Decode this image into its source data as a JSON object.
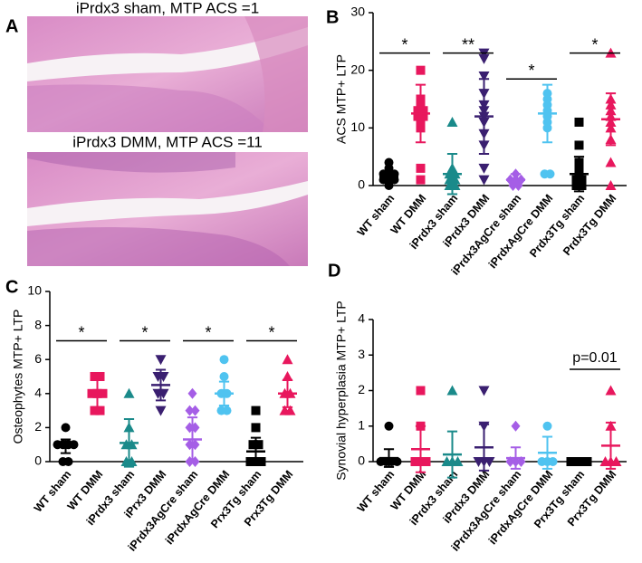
{
  "histology": {
    "panel_label": "A",
    "captions": [
      "iPrdx3 sham, MTP ACS =1",
      "iPrdx3 DMM, MTP ACS =11"
    ]
  },
  "chart_data": [
    {
      "type": "dotplot",
      "panel_label": "B",
      "ylabel": "ACS MTP+ LTP",
      "ylim": [
        0,
        30
      ],
      "yticks": [
        0,
        10,
        20,
        30
      ],
      "groups": [
        {
          "name": "WT sham",
          "color": "#000000",
          "marker": "circle",
          "points": [
            0,
            1,
            1,
            1,
            2,
            2,
            2,
            3,
            4
          ],
          "mean": 1.5,
          "sd": 1
        },
        {
          "name": "WT DMM",
          "color": "#e8175d",
          "marker": "square",
          "points": [
            1,
            3,
            10,
            11,
            12,
            12,
            13,
            13,
            14,
            15,
            20
          ],
          "mean": 12.5,
          "sd": 5
        },
        {
          "name": "iPrdx3 sham",
          "color": "#1a8a8a",
          "marker": "triangle",
          "points": [
            0,
            0,
            1,
            1,
            2,
            2,
            3,
            11
          ],
          "mean": 2,
          "sd": 3.5
        },
        {
          "name": "iPrdx3 DMM",
          "color": "#3a1f70",
          "marker": "triangle-down",
          "points": [
            1,
            3,
            7,
            9,
            11,
            12,
            13,
            14,
            16,
            19,
            22,
            23
          ],
          "mean": 12,
          "sd": 6.5
        },
        {
          "name": "iPrdx3AgCre sham",
          "color": "#a55ee6",
          "marker": "diamond",
          "points": [
            0,
            0,
            1,
            1,
            1,
            2
          ],
          "mean": 1,
          "sd": 1
        },
        {
          "name": "iPrdxAgCre DMM",
          "color": "#4fc3f0",
          "marker": "circle",
          "points": [
            2,
            2,
            10,
            11,
            12,
            13,
            14,
            15,
            16
          ],
          "mean": 12.5,
          "sd": 5
        },
        {
          "name": "Prdx3Tg sham",
          "color": "#000000",
          "marker": "square",
          "points": [
            0,
            0,
            1,
            1,
            2,
            3,
            4,
            7,
            11
          ],
          "mean": 2,
          "sd": 3
        },
        {
          "name": "Prdx3Tg DMM",
          "color": "#e8175d",
          "marker": "triangle",
          "points": [
            0,
            4,
            8,
            10,
            11,
            12,
            13,
            14,
            15,
            23
          ],
          "mean": 11.5,
          "sd": 4.5
        }
      ],
      "brackets": [
        {
          "between": [
            "WT sham",
            "WT DMM"
          ],
          "y": 23,
          "label": "*"
        },
        {
          "between": [
            "iPrdx3 sham",
            "iPrdx3 DMM"
          ],
          "y": 23,
          "label": "**"
        },
        {
          "between": [
            "iPrdx3AgCre sham",
            "iPrdxAgCre DMM"
          ],
          "y": 18.5,
          "label": "*"
        },
        {
          "between": [
            "Prdx3Tg sham",
            "Prdx3Tg DMM"
          ],
          "y": 23,
          "label": "*"
        }
      ]
    },
    {
      "type": "dotplot",
      "panel_label": "C",
      "ylabel": "Osteophytes MTP+ LTP",
      "ylim": [
        0,
        10
      ],
      "yticks": [
        0,
        2,
        4,
        6,
        8,
        10
      ],
      "groups": [
        {
          "name": "WT sham",
          "color": "#000000",
          "marker": "circle",
          "points": [
            0,
            0,
            1,
            1,
            1,
            1,
            2
          ],
          "mean": 0.9,
          "sd": 0.4
        },
        {
          "name": "WT DMM",
          "color": "#e8175d",
          "marker": "square",
          "points": [
            3,
            3,
            4,
            4,
            4,
            5,
            5
          ],
          "mean": 4,
          "sd": 0.8
        },
        {
          "name": "iPrdx3 sham",
          "color": "#1a8a8a",
          "marker": "triangle",
          "points": [
            0,
            0,
            1,
            1,
            2,
            4
          ],
          "mean": 1.1,
          "sd": 1.4
        },
        {
          "name": "iPrx3 DMM",
          "color": "#3a1f70",
          "marker": "triangle-down",
          "points": [
            3,
            4,
            4,
            5,
            5,
            6
          ],
          "mean": 4.5,
          "sd": 0.9
        },
        {
          "name": "iPrdx3AgCre sham",
          "color": "#a55ee6",
          "marker": "diamond",
          "points": [
            0,
            0,
            1,
            1,
            2,
            2,
            3,
            3,
            4
          ],
          "mean": 1.3,
          "sd": 1.3
        },
        {
          "name": "iPrdxAgCre DMM",
          "color": "#4fc3f0",
          "marker": "circle",
          "points": [
            3,
            3,
            4,
            4,
            5,
            6
          ],
          "mean": 4,
          "sd": 0.7
        },
        {
          "name": "Prx3Tg sham",
          "color": "#000000",
          "marker": "square",
          "points": [
            0,
            0,
            0,
            1,
            1,
            2,
            3
          ],
          "mean": 0.6,
          "sd": 0.8
        },
        {
          "name": "Prx3Tg DMM",
          "color": "#e8175d",
          "marker": "triangle",
          "points": [
            3,
            3,
            4,
            4,
            5,
            6
          ],
          "mean": 4,
          "sd": 0.8
        }
      ],
      "brackets": [
        {
          "between": [
            "WT sham",
            "WT DMM"
          ],
          "y": 7.1,
          "label": "*"
        },
        {
          "between": [
            "iPrdx3 sham",
            "iPrx3 DMM"
          ],
          "y": 7.1,
          "label": "*"
        },
        {
          "between": [
            "iPrdx3AgCre sham",
            "iPrdxAgCre DMM"
          ],
          "y": 7.1,
          "label": "*"
        },
        {
          "between": [
            "Prx3Tg sham",
            "Prx3Tg DMM"
          ],
          "y": 7.1,
          "label": "*"
        }
      ]
    },
    {
      "type": "dotplot",
      "panel_label": "D",
      "ylabel": "Synovial hyperplasia MTP+ LTP",
      "ylim": [
        0,
        4
      ],
      "yticks": [
        0,
        1,
        2,
        3,
        4
      ],
      "groups": [
        {
          "name": "WT sham",
          "color": "#000000",
          "marker": "circle",
          "points": [
            0,
            0,
            0,
            0,
            1
          ],
          "mean": 0.1,
          "sd": 0.25
        },
        {
          "name": "WT DMM",
          "color": "#e8175d",
          "marker": "square",
          "points": [
            0,
            0,
            0,
            1,
            2
          ],
          "mean": 0.35,
          "sd": 0.65
        },
        {
          "name": "iPrdx3 sham",
          "color": "#1a8a8a",
          "marker": "triangle",
          "points": [
            0,
            0,
            0,
            2
          ],
          "mean": 0.2,
          "sd": 0.65
        },
        {
          "name": "iPrdx3 DMM",
          "color": "#3a1f70",
          "marker": "triangle-down",
          "points": [
            0,
            0,
            0,
            1,
            2
          ],
          "mean": 0.4,
          "sd": 0.65
        },
        {
          "name": "iPrdx3AgCre sham",
          "color": "#a55ee6",
          "marker": "diamond",
          "points": [
            0,
            0,
            0,
            1
          ],
          "mean": 0.1,
          "sd": 0.3
        },
        {
          "name": "iPrdxAgCre DMM",
          "color": "#4fc3f0",
          "marker": "circle",
          "points": [
            0,
            0,
            0,
            1
          ],
          "mean": 0.25,
          "sd": 0.45
        },
        {
          "name": "Prx3Tg sham",
          "color": "#000000",
          "marker": "square",
          "points": [
            0,
            0,
            0,
            0
          ],
          "mean": 0,
          "sd": 0
        },
        {
          "name": "Prx3Tg DMM",
          "color": "#e8175d",
          "marker": "triangle",
          "points": [
            0,
            0,
            0,
            1,
            2
          ],
          "mean": 0.45,
          "sd": 0.65
        }
      ],
      "brackets": [
        {
          "between": [
            "Prx3Tg sham",
            "Prx3Tg DMM"
          ],
          "y": 2.6,
          "label": "p=0.01"
        }
      ]
    }
  ]
}
